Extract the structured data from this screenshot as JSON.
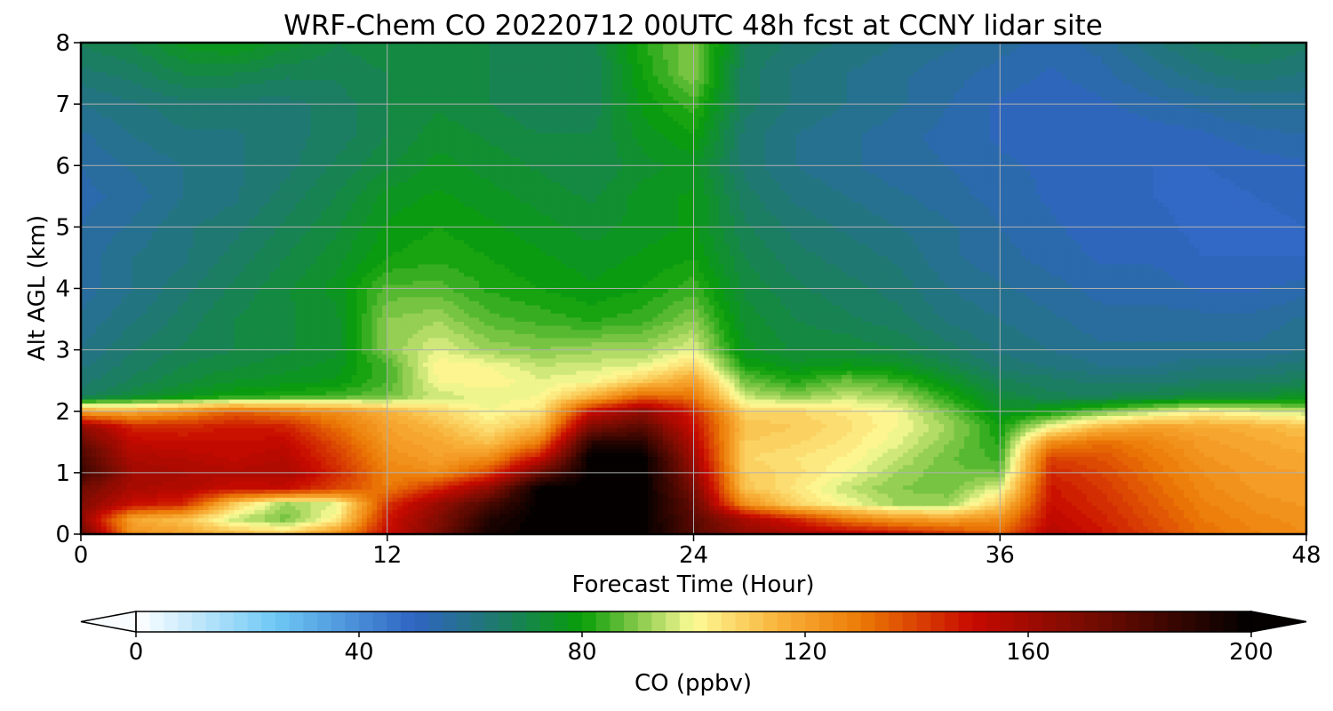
{
  "chart_data": {
    "type": "heatmap",
    "title": "WRF-Chem CO  20220712 00UTC 48h fcst at CCNY lidar site",
    "xlabel": "Forecast Time (Hour)",
    "ylabel": "Alt AGL (km)",
    "xlim": [
      0,
      48
    ],
    "ylim": [
      0,
      8
    ],
    "xticks": [
      0,
      12,
      24,
      36,
      48
    ],
    "yticks": [
      0,
      1,
      2,
      3,
      4,
      5,
      6,
      7,
      8
    ],
    "grid": true,
    "colorbar": {
      "label": "CO  (ppbv)",
      "range": [
        0,
        200
      ],
      "ticks": [
        0,
        40,
        80,
        120,
        160,
        200
      ],
      "extend": "both",
      "stops": [
        {
          "value": 0,
          "color": "#ffffff"
        },
        {
          "value": 25,
          "color": "#6ec8f5"
        },
        {
          "value": 50,
          "color": "#2f64c2"
        },
        {
          "value": 65,
          "color": "#1d7a6a"
        },
        {
          "value": 80,
          "color": "#089e08"
        },
        {
          "value": 90,
          "color": "#86c94a"
        },
        {
          "value": 100,
          "color": "#fdfb96"
        },
        {
          "value": 115,
          "color": "#f9b43c"
        },
        {
          "value": 130,
          "color": "#ec7a06"
        },
        {
          "value": 150,
          "color": "#c80a00"
        },
        {
          "value": 170,
          "color": "#7a0c02"
        },
        {
          "value": 200,
          "color": "#000000"
        }
      ]
    },
    "x_hours": [
      0,
      2,
      4,
      6,
      8,
      10,
      12,
      14,
      16,
      18,
      20,
      22,
      24,
      26,
      28,
      30,
      32,
      34,
      36,
      38,
      40,
      42,
      44,
      46,
      48
    ],
    "z_km": [
      0,
      0.25,
      0.5,
      0.75,
      1,
      1.25,
      1.5,
      1.75,
      2,
      2.25,
      2.5,
      2.75,
      3,
      3.5,
      4,
      4.5,
      5,
      5.5,
      6,
      6.5,
      7,
      7.5,
      8
    ],
    "co_ppbv": [
      [
        175,
        125,
        120,
        115,
        110,
        125,
        150,
        170,
        195,
        200,
        200,
        200,
        180,
        165,
        160,
        155,
        150,
        142,
        135,
        155,
        148,
        140,
        132,
        128,
        125
      ],
      [
        165,
        118,
        112,
        95,
        88,
        102,
        148,
        168,
        192,
        200,
        200,
        200,
        178,
        158,
        145,
        130,
        122,
        120,
        125,
        152,
        146,
        138,
        130,
        126,
        124
      ],
      [
        168,
        150,
        145,
        110,
        92,
        98,
        142,
        162,
        182,
        200,
        200,
        200,
        175,
        125,
        108,
        100,
        92,
        92,
        110,
        150,
        144,
        136,
        128,
        124,
        122
      ],
      [
        172,
        158,
        156,
        150,
        150,
        140,
        130,
        145,
        165,
        200,
        200,
        200,
        170,
        112,
        104,
        95,
        90,
        88,
        98,
        148,
        142,
        134,
        126,
        122,
        120
      ],
      [
        185,
        160,
        158,
        156,
        158,
        145,
        128,
        125,
        140,
        175,
        200,
        200,
        165,
        110,
        106,
        100,
        92,
        88,
        88,
        145,
        140,
        132,
        125,
        121,
        120
      ],
      [
        182,
        157,
        155,
        152,
        155,
        142,
        125,
        120,
        125,
        150,
        200,
        200,
        160,
        108,
        105,
        102,
        95,
        88,
        84,
        140,
        137,
        130,
        123,
        120,
        118
      ],
      [
        175,
        152,
        150,
        150,
        152,
        138,
        122,
        118,
        112,
        130,
        190,
        190,
        155,
        110,
        108,
        104,
        98,
        90,
        82,
        125,
        132,
        127,
        121,
        118,
        116
      ],
      [
        165,
        146,
        145,
        148,
        146,
        132,
        120,
        114,
        105,
        115,
        170,
        178,
        150,
        112,
        110,
        106,
        100,
        92,
        80,
        100,
        115,
        120,
        118,
        116,
        112
      ],
      [
        120,
        118,
        125,
        135,
        130,
        125,
        116,
        108,
        100,
        105,
        150,
        165,
        145,
        108,
        108,
        104,
        100,
        88,
        76,
        80,
        88,
        95,
        102,
        98,
        95
      ],
      [
        66,
        72,
        76,
        80,
        82,
        84,
        88,
        96,
        98,
        100,
        115,
        135,
        130,
        95,
        90,
        95,
        92,
        82,
        72,
        68,
        68,
        70,
        72,
        72,
        76
      ],
      [
        64,
        68,
        72,
        75,
        76,
        78,
        85,
        100,
        102,
        98,
        100,
        110,
        120,
        88,
        82,
        88,
        84,
        76,
        68,
        66,
        64,
        64,
        66,
        66,
        68
      ],
      [
        62,
        66,
        70,
        72,
        74,
        76,
        85,
        102,
        100,
        95,
        96,
        98,
        108,
        80,
        76,
        78,
        76,
        70,
        64,
        62,
        60,
        60,
        62,
        62,
        64
      ],
      [
        60,
        65,
        68,
        70,
        72,
        74,
        90,
        98,
        92,
        90,
        92,
        92,
        98,
        76,
        72,
        72,
        70,
        66,
        62,
        60,
        58,
        58,
        58,
        58,
        60
      ],
      [
        58,
        62,
        66,
        70,
        72,
        74,
        90,
        92,
        86,
        84,
        82,
        84,
        90,
        74,
        70,
        68,
        66,
        62,
        60,
        58,
        56,
        56,
        56,
        56,
        58
      ],
      [
        56,
        60,
        64,
        68,
        72,
        76,
        86,
        86,
        82,
        80,
        78,
        80,
        84,
        72,
        68,
        66,
        64,
        60,
        58,
        56,
        54,
        54,
        52,
        52,
        54
      ],
      [
        56,
        60,
        62,
        66,
        70,
        74,
        80,
        82,
        80,
        78,
        76,
        78,
        80,
        70,
        66,
        64,
        62,
        58,
        56,
        54,
        52,
        52,
        50,
        50,
        50
      ],
      [
        55,
        58,
        62,
        64,
        68,
        72,
        78,
        80,
        78,
        76,
        74,
        76,
        78,
        68,
        64,
        62,
        60,
        58,
        55,
        53,
        51,
        51,
        49,
        49,
        50
      ],
      [
        54,
        56,
        60,
        62,
        66,
        70,
        76,
        78,
        76,
        74,
        72,
        76,
        78,
        66,
        62,
        60,
        58,
        56,
        54,
        52,
        50,
        50,
        49,
        50,
        51
      ],
      [
        55,
        58,
        60,
        62,
        64,
        68,
        72,
        76,
        74,
        72,
        70,
        74,
        76,
        64,
        60,
        58,
        56,
        55,
        53,
        52,
        50,
        50,
        50,
        51,
        52
      ],
      [
        57,
        60,
        62,
        62,
        64,
        66,
        70,
        74,
        72,
        70,
        70,
        76,
        80,
        64,
        60,
        58,
        56,
        54,
        52,
        51,
        50,
        51,
        52,
        54,
        55
      ],
      [
        60,
        62,
        64,
        64,
        64,
        66,
        70,
        72,
        70,
        68,
        68,
        78,
        84,
        66,
        62,
        60,
        58,
        55,
        52,
        51,
        52,
        54,
        56,
        58,
        58
      ],
      [
        64,
        66,
        70,
        70,
        68,
        68,
        70,
        72,
        70,
        68,
        68,
        80,
        90,
        66,
        62,
        60,
        58,
        56,
        54,
        52,
        54,
        58,
        62,
        64,
        62
      ],
      [
        68,
        70,
        76,
        78,
        74,
        70,
        72,
        72,
        70,
        68,
        68,
        82,
        90,
        68,
        64,
        62,
        60,
        58,
        56,
        54,
        56,
        62,
        66,
        68,
        66
      ]
    ]
  }
}
